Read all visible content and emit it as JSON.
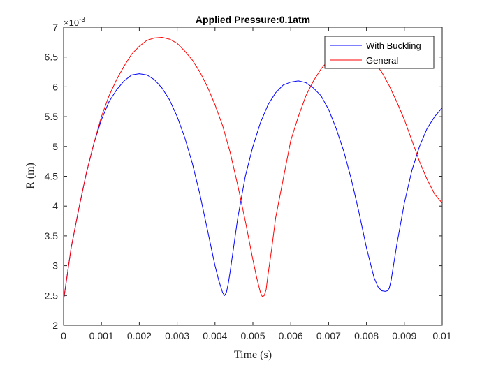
{
  "chart_data": {
    "type": "line",
    "title": "Applied Pressure:0.1atm",
    "xlabel": "Time (s)",
    "ylabel": "R  (m)",
    "y_exponent_label": "×10",
    "y_exponent_power": "-3",
    "xlim": [
      0,
      0.01
    ],
    "ylim": [
      2,
      7
    ],
    "x_ticks": [
      0,
      0.001,
      0.002,
      0.003,
      0.004,
      0.005,
      0.006,
      0.007,
      0.008,
      0.009,
      0.01
    ],
    "x_tick_labels": [
      "0",
      "0.001",
      "0.002",
      "0.003",
      "0.004",
      "0.005",
      "0.006",
      "0.007",
      "0.008",
      "0.009",
      "0.01"
    ],
    "y_ticks": [
      2,
      2.5,
      3,
      3.5,
      4,
      4.5,
      5,
      5.5,
      6,
      6.5,
      7
    ],
    "y_tick_labels": [
      "2",
      "2.5",
      "3",
      "3.5",
      "4",
      "4.5",
      "5",
      "5.5",
      "6",
      "6.5",
      "7"
    ],
    "grid": false,
    "legend_position": "top-right",
    "series": [
      {
        "name": "With Buckling",
        "color": "#0000ff",
        "x": [
          0,
          0.0002,
          0.0004,
          0.0006,
          0.0008,
          0.001,
          0.0012,
          0.0014,
          0.0016,
          0.0018,
          0.002,
          0.0022,
          0.0024,
          0.0026,
          0.0028,
          0.003,
          0.0032,
          0.0034,
          0.0036,
          0.0038,
          0.004,
          0.0041,
          0.0042,
          0.00425,
          0.0043,
          0.00435,
          0.0044,
          0.0045,
          0.0046,
          0.0048,
          0.005,
          0.0052,
          0.0054,
          0.0056,
          0.0058,
          0.006,
          0.0062,
          0.0064,
          0.0066,
          0.0068,
          0.007,
          0.0072,
          0.0074,
          0.0076,
          0.0078,
          0.008,
          0.0082,
          0.0083,
          0.0084,
          0.0085,
          0.00855,
          0.0086,
          0.00865,
          0.0087,
          0.0088,
          0.009,
          0.0092,
          0.0094,
          0.0096,
          0.0098,
          0.01
        ],
        "values": [
          2.42,
          3.3,
          3.95,
          4.55,
          5.05,
          5.45,
          5.75,
          5.95,
          6.1,
          6.2,
          6.22,
          6.2,
          6.12,
          5.98,
          5.78,
          5.5,
          5.15,
          4.72,
          4.2,
          3.6,
          3.0,
          2.75,
          2.55,
          2.5,
          2.55,
          2.7,
          2.9,
          3.35,
          3.8,
          4.5,
          5.0,
          5.4,
          5.7,
          5.9,
          6.03,
          6.08,
          6.1,
          6.07,
          5.98,
          5.85,
          5.62,
          5.3,
          4.92,
          4.45,
          3.9,
          3.3,
          2.8,
          2.65,
          2.58,
          2.57,
          2.58,
          2.62,
          2.75,
          2.95,
          3.35,
          4.05,
          4.6,
          5.0,
          5.3,
          5.5,
          5.65
        ]
      },
      {
        "name": "General",
        "color": "#ff0000",
        "x": [
          0,
          0.0002,
          0.0004,
          0.0006,
          0.0008,
          0.001,
          0.0012,
          0.0014,
          0.0016,
          0.0018,
          0.002,
          0.0022,
          0.0024,
          0.0026,
          0.0028,
          0.003,
          0.0032,
          0.0034,
          0.0036,
          0.0038,
          0.004,
          0.0042,
          0.0044,
          0.0046,
          0.0048,
          0.005,
          0.0051,
          0.0052,
          0.00525,
          0.0053,
          0.00535,
          0.0054,
          0.0055,
          0.0056,
          0.0058,
          0.006,
          0.0062,
          0.0064,
          0.0066,
          0.0068,
          0.007,
          0.0072,
          0.0074,
          0.0076,
          0.0078,
          0.008,
          0.0082,
          0.0084,
          0.0086,
          0.0088,
          0.009,
          0.0092,
          0.0094,
          0.0096,
          0.0098,
          0.01
        ],
        "values": [
          2.42,
          3.3,
          3.95,
          4.55,
          5.05,
          5.5,
          5.85,
          6.12,
          6.35,
          6.55,
          6.68,
          6.78,
          6.82,
          6.83,
          6.8,
          6.73,
          6.6,
          6.45,
          6.25,
          6.0,
          5.7,
          5.35,
          4.9,
          4.35,
          3.75,
          3.1,
          2.8,
          2.55,
          2.48,
          2.5,
          2.6,
          2.85,
          3.3,
          3.8,
          4.45,
          5.1,
          5.5,
          5.85,
          6.1,
          6.3,
          6.45,
          6.55,
          6.6,
          6.62,
          6.6,
          6.55,
          6.42,
          6.25,
          6.02,
          5.75,
          5.45,
          5.1,
          4.75,
          4.45,
          4.2,
          4.05
        ]
      }
    ]
  }
}
